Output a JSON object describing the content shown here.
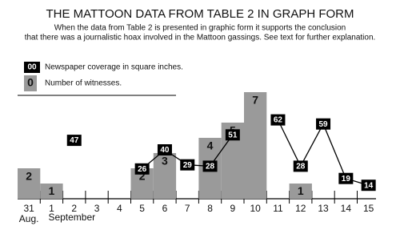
{
  "chart_data": {
    "type": "bar",
    "title": "THE MATTOON DATA FROM TABLE 2 IN GRAPH FORM",
    "subtitle": [
      "When the data from Table 2 is presented in graphic form it supports the conclusion",
      "that there was a journalistic hoax involved in the Mattoon gassings. See text for further explanation."
    ],
    "categories": [
      "31",
      "1",
      "2",
      "3",
      "4",
      "5",
      "6",
      "7",
      "8",
      "9",
      "10",
      "11",
      "12",
      "13",
      "14",
      "15"
    ],
    "month_labels": [
      "Aug.",
      "September"
    ],
    "series": [
      {
        "name": "Number of witnesses.",
        "type": "bar",
        "color": "#9a9a9a",
        "legend_symbol": "0",
        "values": [
          2,
          1,
          null,
          null,
          null,
          2,
          3,
          null,
          4,
          5,
          7,
          null,
          1,
          null,
          null,
          null
        ]
      },
      {
        "name": "Newspaper coverage in square inches.",
        "type": "line",
        "color": "#000000",
        "legend_symbol": "00",
        "values": [
          null,
          null,
          47,
          null,
          null,
          26,
          40,
          29,
          28,
          51,
          null,
          62,
          28,
          59,
          19,
          14
        ]
      }
    ]
  }
}
